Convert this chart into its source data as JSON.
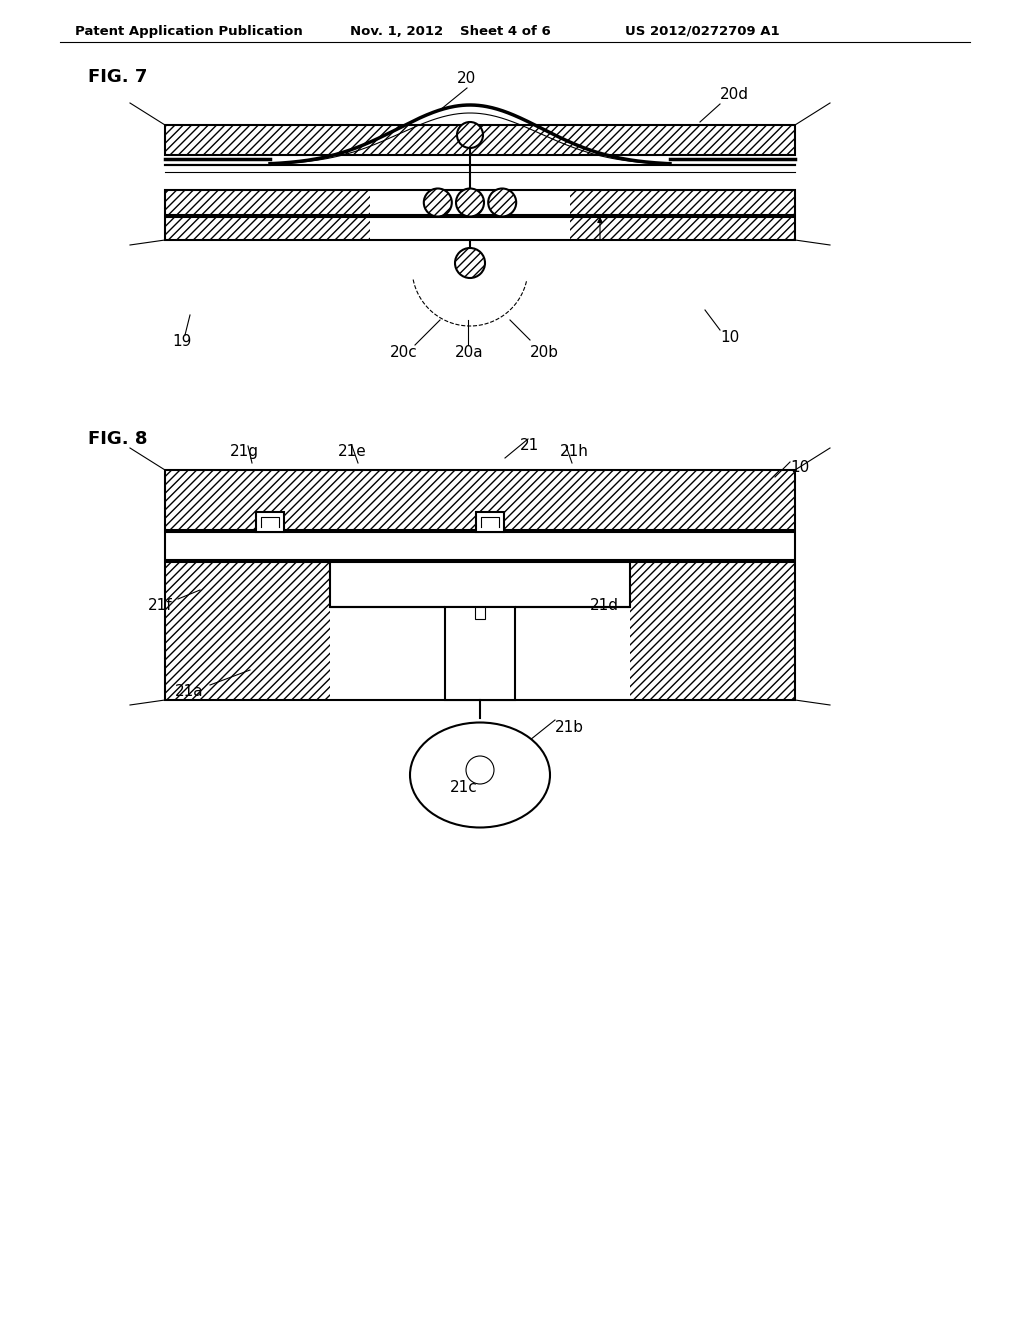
{
  "bg_color": "#ffffff",
  "header_text": "Patent Application Publication",
  "header_date": "Nov. 1, 2012",
  "header_sheet": "Sheet 4 of 6",
  "header_patent": "US 2012/0272709 A1",
  "fig7_label": "FIG. 7",
  "fig8_label": "FIG. 8",
  "line_color": "#000000"
}
